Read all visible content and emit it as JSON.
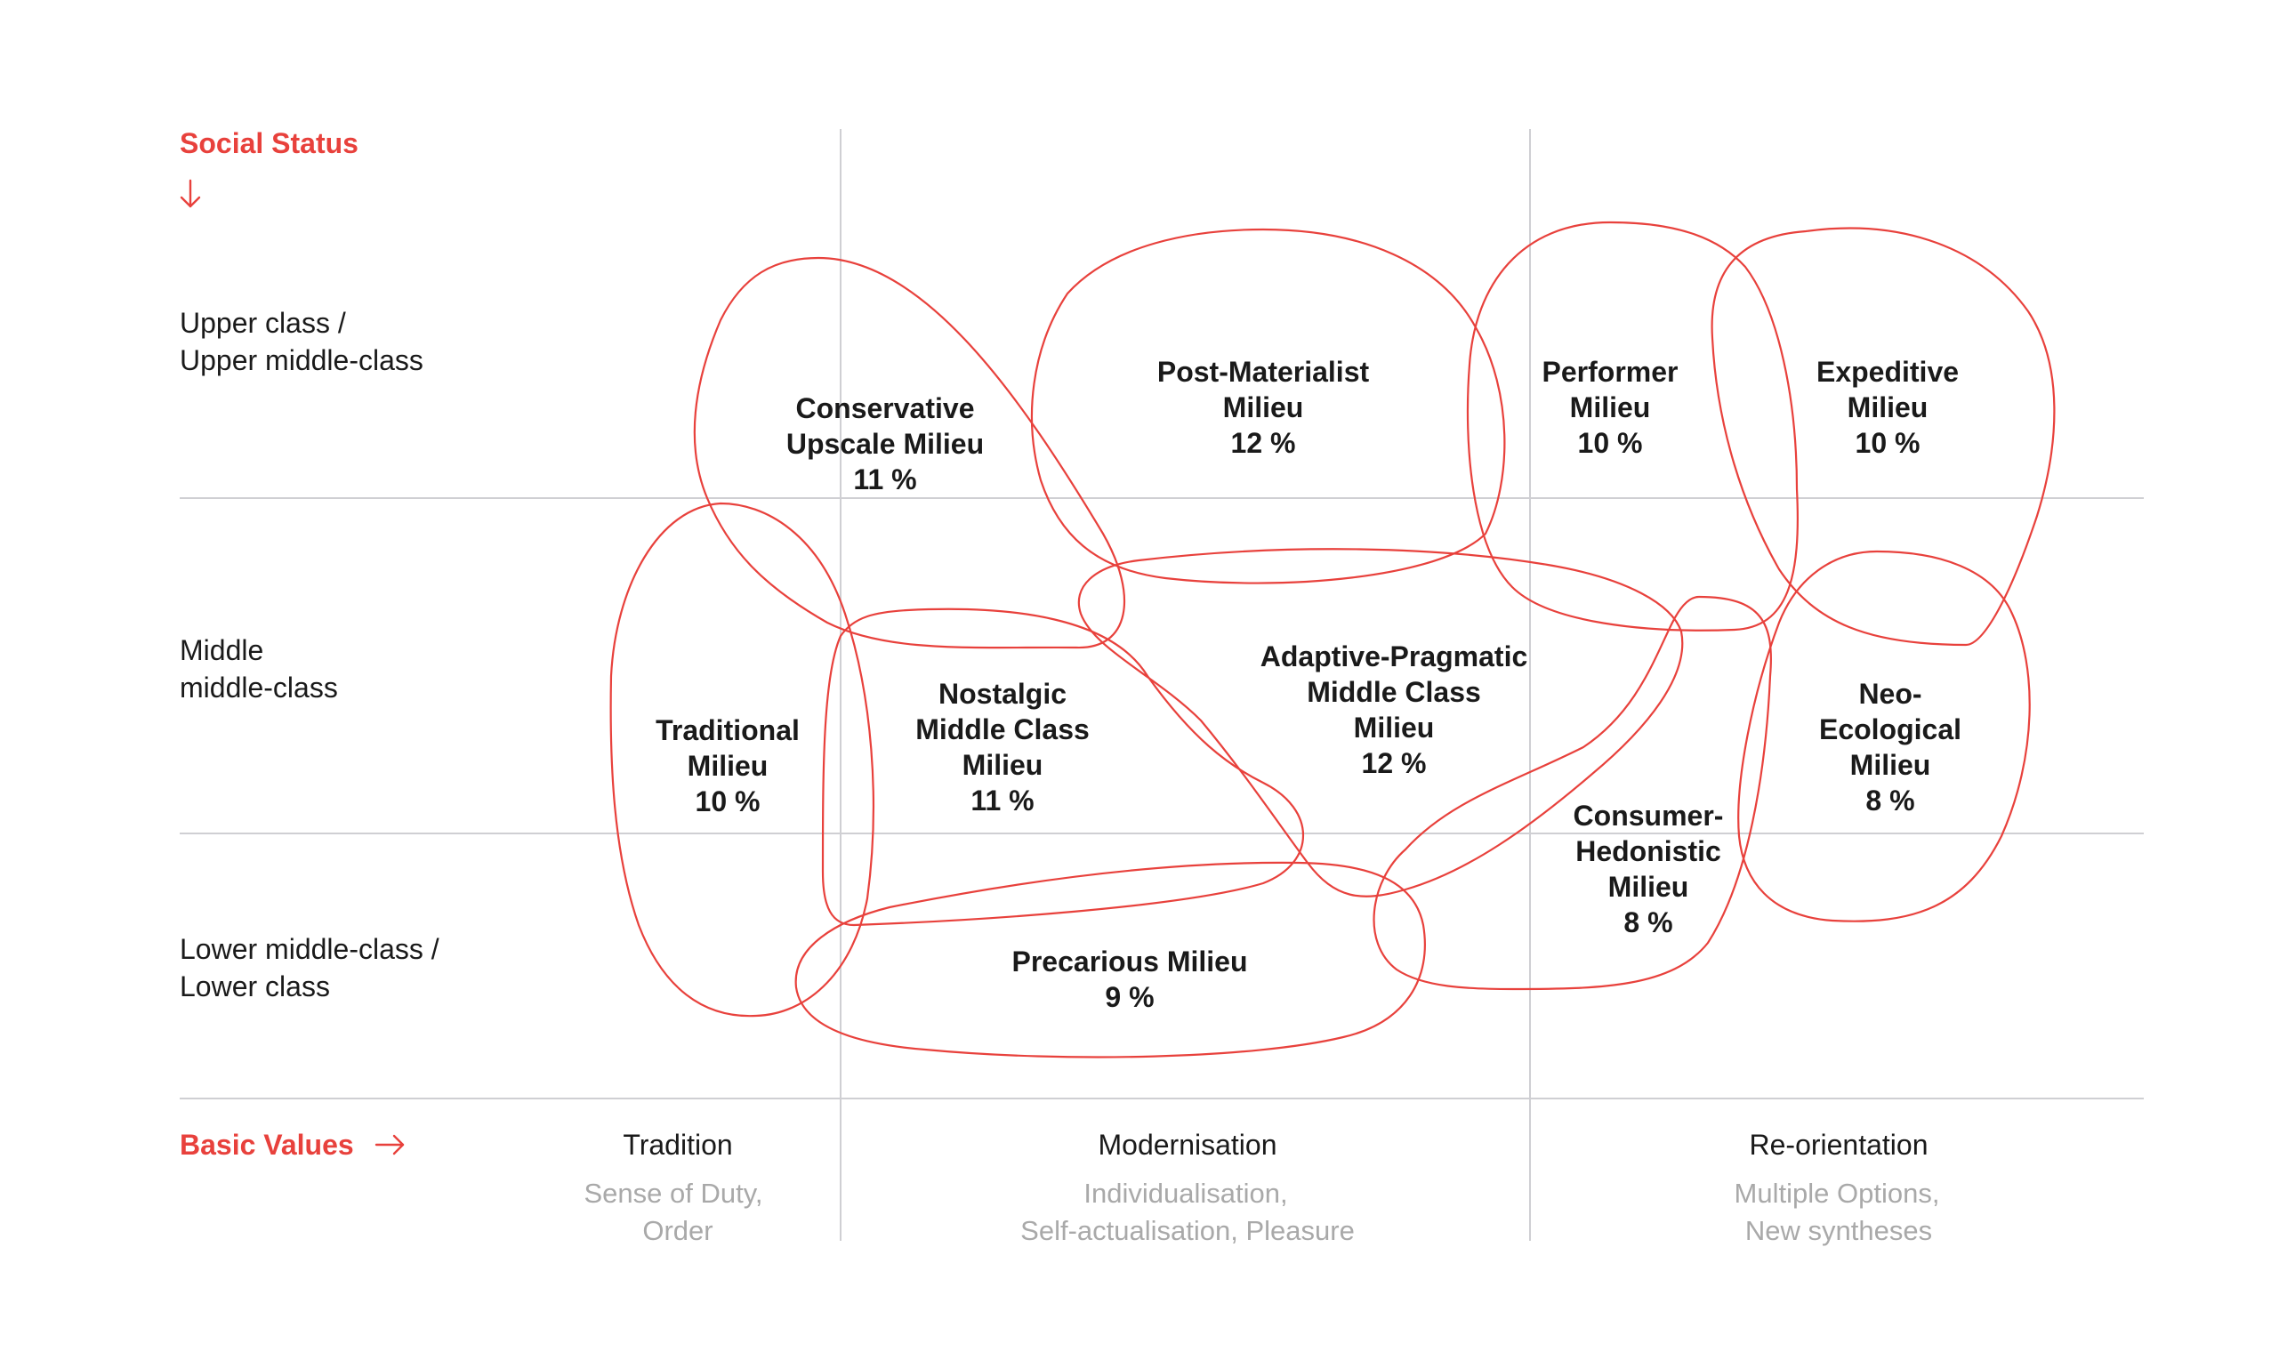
{
  "axes": {
    "y_title": "Social Status",
    "x_title": "Basic Values",
    "rows": [
      {
        "line1": "Upper class /",
        "line2": "Upper middle-class"
      },
      {
        "line1": "Middle",
        "line2": "middle-class"
      },
      {
        "line1": "Lower middle-class /",
        "line2": "Lower class"
      }
    ],
    "columns": [
      {
        "title": "Tradition",
        "sub1": "Sense of Duty,",
        "sub2": "Order"
      },
      {
        "title": "Modernisation",
        "sub1": "Individualisation,",
        "sub2": "Self-actualisation, Pleasure"
      },
      {
        "title": "Re-orientation",
        "sub1": "Multiple Options,",
        "sub2": "New syntheses"
      }
    ]
  },
  "milieus": [
    {
      "id": "conservative",
      "lines": [
        "Conservative",
        "Upscale Milieu",
        "11 %"
      ],
      "share": 11
    },
    {
      "id": "post-materialist",
      "lines": [
        "Post-Materialist",
        "Milieu",
        "12 %"
      ],
      "share": 12
    },
    {
      "id": "performer",
      "lines": [
        "Performer",
        "Milieu",
        "10 %"
      ],
      "share": 10
    },
    {
      "id": "expeditive",
      "lines": [
        "Expeditive",
        "Milieu",
        "10 %"
      ],
      "share": 10
    },
    {
      "id": "traditional",
      "lines": [
        "Traditional",
        "Milieu",
        "10 %"
      ],
      "share": 10
    },
    {
      "id": "nostalgic",
      "lines": [
        "Nostalgic",
        "Middle Class",
        "Milieu",
        "11 %"
      ],
      "share": 11
    },
    {
      "id": "adaptive",
      "lines": [
        "Adaptive-Pragmatic",
        "Middle Class",
        "Milieu",
        "12 %"
      ],
      "share": 12
    },
    {
      "id": "neo-ecological",
      "lines": [
        "Neo-",
        "Ecological",
        "Milieu",
        "8 %"
      ],
      "share": 8
    },
    {
      "id": "consumer",
      "lines": [
        "Consumer-",
        "Hedonistic",
        "Milieu",
        "8 %"
      ],
      "share": 8
    },
    {
      "id": "precarious",
      "lines": [
        "Precarious Milieu",
        "9 %"
      ],
      "share": 9
    }
  ],
  "colors": {
    "accent": "#e8413c",
    "grid": "#cfcfd3",
    "text": "#1a1a1a",
    "muted": "#a9a9a9"
  },
  "icons": {
    "y_arrow": "arrow-down-icon",
    "x_arrow": "arrow-right-icon"
  }
}
